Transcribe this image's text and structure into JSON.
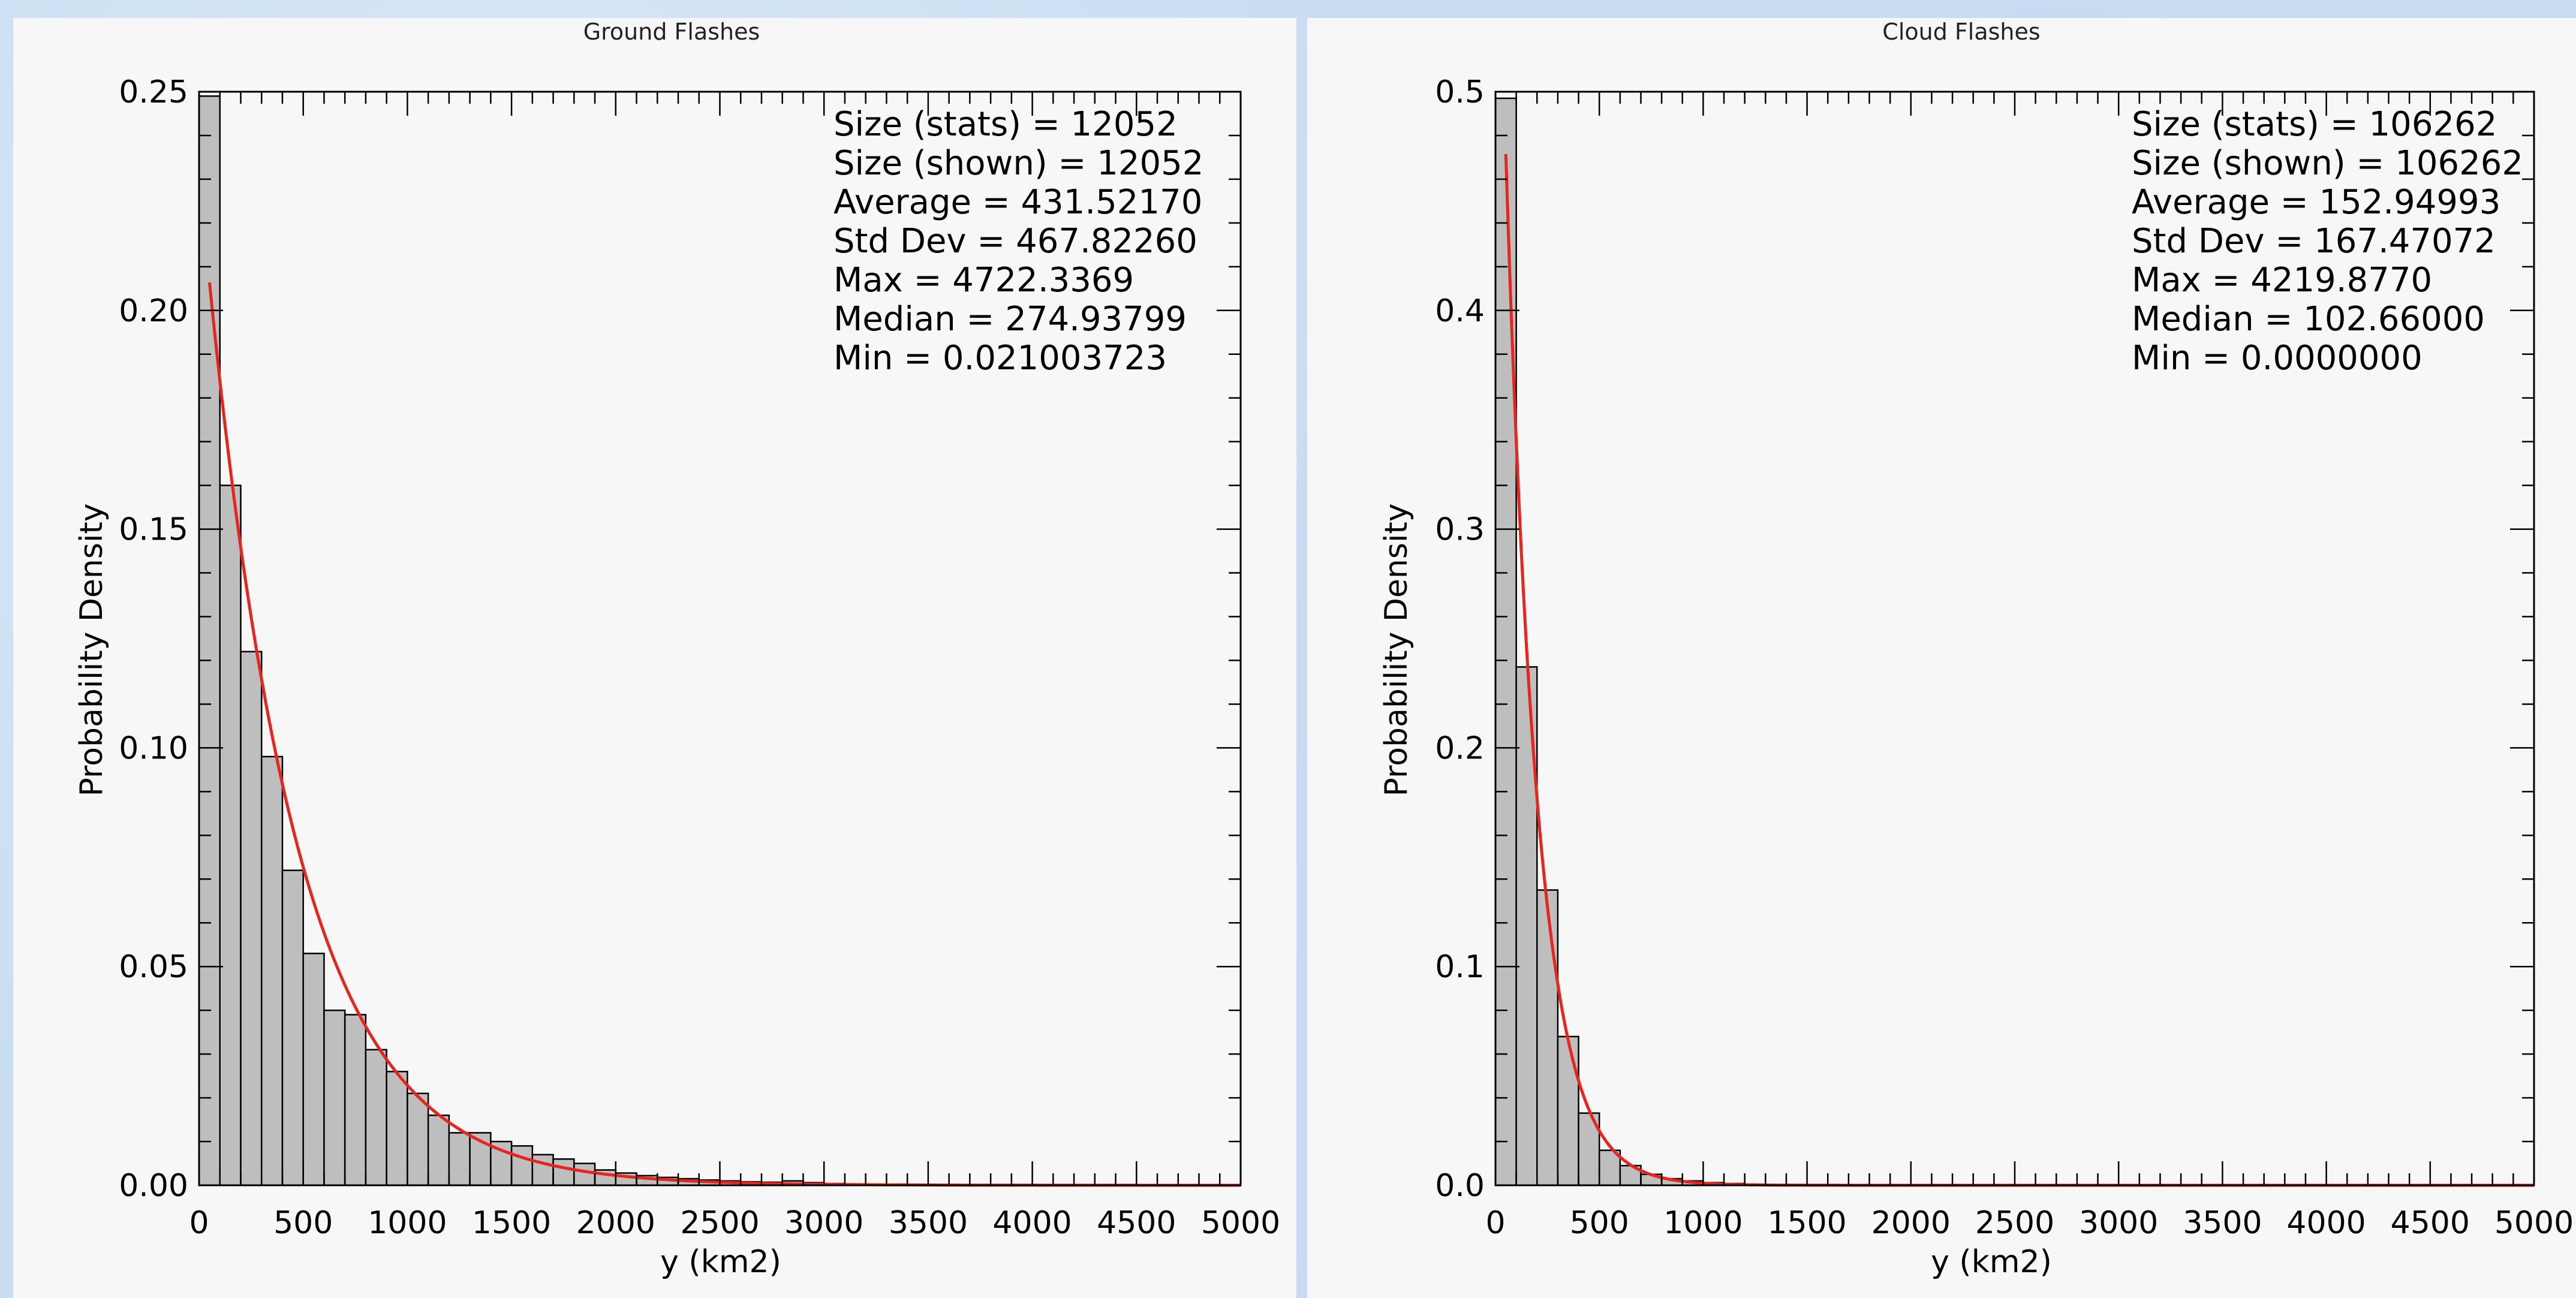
{
  "chart_data": [
    {
      "type": "bar",
      "title": "Ground Flashes",
      "xlabel": "y (km2)",
      "ylabel": "Probability Density",
      "xlim": [
        0,
        5000
      ],
      "ylim": [
        0,
        0.25
      ],
      "x_ticks": [
        0,
        500,
        1000,
        1500,
        2000,
        2500,
        3000,
        3500,
        4000,
        4500,
        5000
      ],
      "x_tick_labels": [
        "0",
        "500",
        "1000",
        "1500",
        "2000",
        "2500",
        "3000",
        "3500",
        "4000",
        "4500",
        "5000"
      ],
      "y_ticks": [
        0,
        0.05,
        0.1,
        0.15,
        0.2,
        0.25
      ],
      "y_tick_labels": [
        "0.00",
        "0.05",
        "0.10",
        "0.15",
        "0.20",
        "0.25"
      ],
      "bin_width": 100,
      "bin_start": 0,
      "values": [
        0.249,
        0.16,
        0.122,
        0.098,
        0.072,
        0.053,
        0.04,
        0.039,
        0.031,
        0.026,
        0.021,
        0.016,
        0.012,
        0.012,
        0.01,
        0.009,
        0.007,
        0.006,
        0.005,
        0.0035,
        0.0028,
        0.0022,
        0.0018,
        0.0015,
        0.0012,
        0.001,
        0.0008,
        0.0007,
        0.001,
        0.0006,
        0.0004
      ],
      "fit": {
        "type": "exponential",
        "scale": 431.5217,
        "x_start": 50,
        "x_end": 5000,
        "color": "#e8241c"
      },
      "bar_color": "#bebebe",
      "stats": [
        "Size (stats) = 12052",
        "Size (shown) = 12052",
        "Average = 431.52170",
        "Std Dev = 467.82260",
        "Max = 4722.3369",
        "Median = 274.93799",
        "Min = 0.021003723"
      ]
    },
    {
      "type": "bar",
      "title": "Cloud Flashes",
      "xlabel": "y (km2)",
      "ylabel": "Probability Density",
      "xlim": [
        0,
        5000
      ],
      "ylim": [
        0,
        0.5
      ],
      "x_ticks": [
        0,
        500,
        1000,
        1500,
        2000,
        2500,
        3000,
        3500,
        4000,
        4500,
        5000
      ],
      "x_tick_labels": [
        "0",
        "500",
        "1000",
        "1500",
        "2000",
        "2500",
        "3000",
        "3500",
        "4000",
        "4500",
        "5000"
      ],
      "y_ticks": [
        0,
        0.1,
        0.2,
        0.3,
        0.4,
        0.5
      ],
      "y_tick_labels": [
        "0.0",
        "0.1",
        "0.2",
        "0.3",
        "0.4",
        "0.5"
      ],
      "bin_width": 100,
      "bin_start": 0,
      "values": [
        0.497,
        0.237,
        0.135,
        0.068,
        0.033,
        0.016,
        0.009,
        0.005,
        0.003,
        0.002,
        0.0012,
        0.0008,
        0.0005
      ],
      "fit": {
        "type": "exponential",
        "scale": 152.94993,
        "x_start": 50,
        "x_end": 5000,
        "color": "#e8241c"
      },
      "bar_color": "#bebebe",
      "stats": [
        "Size (stats) = 106262",
        "Size (shown) = 106262",
        "Average = 152.94993",
        "Std Dev = 167.47072",
        "Max = 4219.8770",
        "Median = 102.66000",
        "Min = 0.0000000"
      ]
    }
  ]
}
